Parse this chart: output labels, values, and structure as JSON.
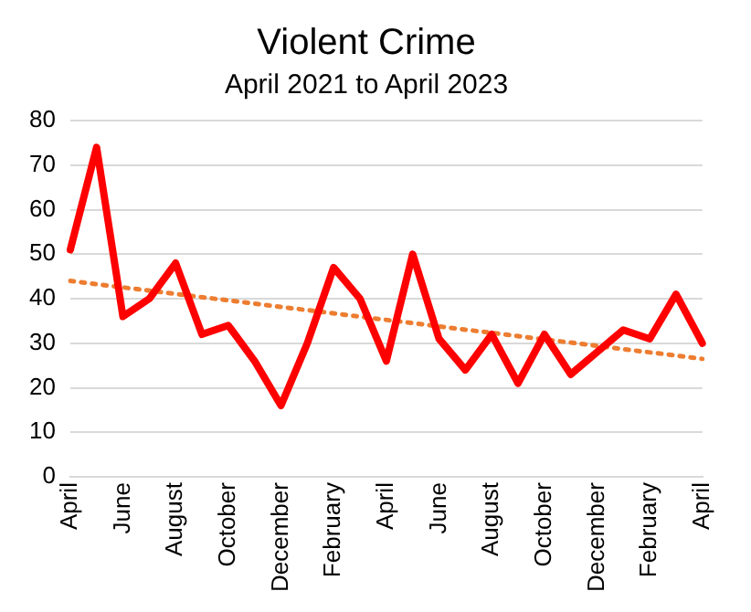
{
  "chart_data": {
    "type": "line",
    "title": "Violent Crime",
    "subtitle": "April 2021 to April 2023",
    "categories": [
      "April",
      null,
      "June",
      null,
      "August",
      null,
      "October",
      null,
      "December",
      null,
      "February",
      null,
      "April",
      null,
      "June",
      null,
      "August",
      null,
      "October",
      null,
      "December",
      null,
      "February",
      null,
      "April"
    ],
    "series": [
      {
        "color": "#ff0000",
        "values": [
          51,
          74,
          36,
          40,
          48,
          32,
          34,
          26,
          16,
          30,
          47,
          40,
          26,
          50,
          31,
          24,
          32,
          21,
          32,
          23,
          28,
          33,
          31,
          41,
          30
        ]
      },
      {
        "type": "line",
        "color": "#ed7d31",
        "line_style": "dotted",
        "values": [
          44,
          null,
          null,
          null,
          null,
          null,
          null,
          null,
          null,
          null,
          null,
          null,
          null,
          null,
          null,
          null,
          null,
          null,
          null,
          null,
          null,
          null,
          null,
          null,
          26.5
        ]
      }
    ],
    "ylim": [
      0,
      80
    ],
    "yticks": [
      0,
      10,
      20,
      30,
      40,
      50,
      60,
      70,
      80
    ],
    "grid": "y",
    "legend": false,
    "marker": "none"
  }
}
